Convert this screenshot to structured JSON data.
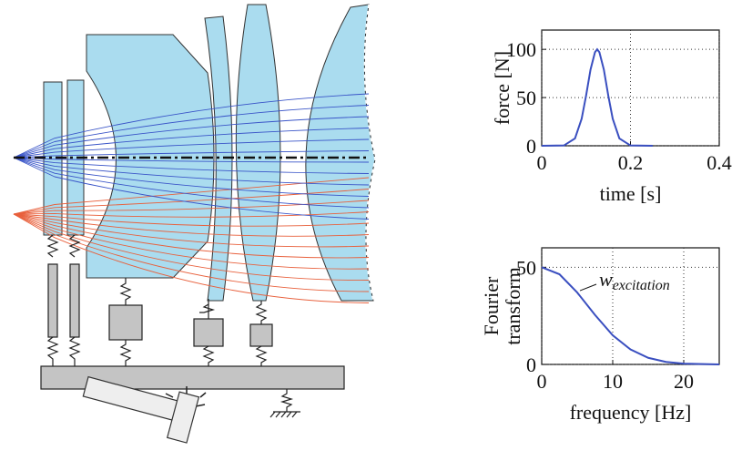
{
  "chart_data": [
    {
      "type": "line",
      "xlabel": "time [s]",
      "ylabel": [
        "force [N]"
      ],
      "x": [
        0,
        0.05,
        0.075,
        0.09,
        0.1,
        0.11,
        0.12,
        0.125,
        0.13,
        0.14,
        0.15,
        0.16,
        0.175,
        0.2,
        0.25
      ],
      "values": [
        0,
        0.3,
        7.6,
        28,
        52,
        79,
        97,
        100,
        97,
        79,
        52,
        28,
        7.6,
        0.3,
        0
      ],
      "color": "#3a4fc0",
      "xlim": [
        0,
        0.4
      ],
      "ylim": [
        0,
        120
      ],
      "xticks": [
        0,
        0.2,
        0.4
      ],
      "yticks": [
        0,
        50,
        100
      ],
      "grid": true
    },
    {
      "type": "line",
      "xlabel": "frequency [Hz]",
      "ylabel": [
        "Fourier",
        "transform"
      ],
      "x": [
        0,
        2.5,
        5,
        7.5,
        10,
        12.5,
        15,
        17.5,
        20,
        25
      ],
      "values": [
        50,
        46.4,
        37,
        25.5,
        15,
        7.7,
        3.4,
        1.3,
        0.4,
        0
      ],
      "color": "#3a4fc0",
      "xlim": [
        0,
        25
      ],
      "ylim": [
        0,
        60
      ],
      "xticks": [
        0,
        10,
        20
      ],
      "yticks": [
        0,
        50
      ],
      "grid": true,
      "annotation": {
        "text": "w",
        "subscript": "excitation"
      }
    }
  ]
}
